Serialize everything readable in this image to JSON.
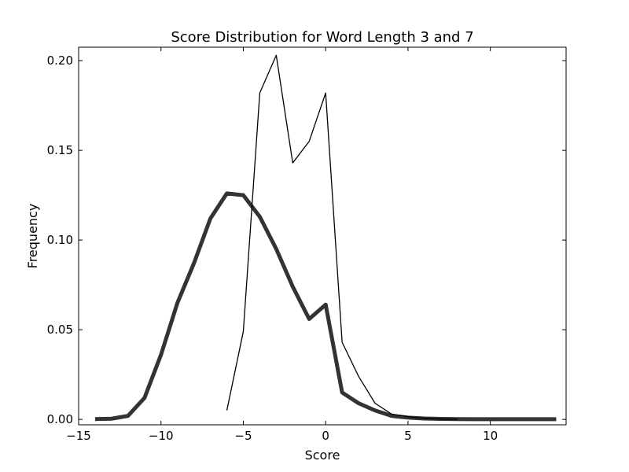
{
  "chart_data": {
    "type": "line",
    "title": "Score Distribution for Word Length 3 and 7",
    "xlabel": "Score",
    "ylabel": "Frequency",
    "xlim": [
      -15,
      14.6
    ],
    "ylim": [
      -0.003,
      0.2075
    ],
    "x_ticks": [
      -15,
      -10,
      -5,
      0,
      5,
      10
    ],
    "x_tick_labels": [
      "−15",
      "−10",
      "−5",
      "0",
      "5",
      "10"
    ],
    "y_ticks": [
      0.0,
      0.05,
      0.1,
      0.15,
      0.2
    ],
    "y_tick_labels": [
      "0.00",
      "0.05",
      "0.10",
      "0.15",
      "0.20"
    ],
    "grid": false,
    "legend": "none",
    "series": [
      {
        "color": "#000000",
        "line_width": "thin",
        "x": [
          -6,
          -5,
          -4,
          -3,
          -2,
          -1,
          0,
          1,
          2,
          3,
          4,
          5,
          6,
          7,
          8
        ],
        "y": [
          0.005,
          0.049,
          0.182,
          0.203,
          0.143,
          0.155,
          0.182,
          0.043,
          0.024,
          0.009,
          0.003,
          0.0015,
          0.0006,
          0.0002,
          0.0001
        ]
      },
      {
        "color": "#333333",
        "line_width": "thick",
        "x": [
          -14,
          -13,
          -12,
          -11,
          -10,
          -9,
          -8,
          -7,
          -6,
          -5,
          -4,
          -3,
          -2,
          -1,
          0,
          1,
          2,
          3,
          4,
          5,
          6,
          7,
          8,
          9,
          10,
          11,
          12,
          13,
          14
        ],
        "y": [
          0.0002,
          0.0004,
          0.002,
          0.012,
          0.036,
          0.065,
          0.087,
          0.112,
          0.126,
          0.125,
          0.113,
          0.095,
          0.074,
          0.056,
          0.064,
          0.015,
          0.009,
          0.005,
          0.002,
          0.001,
          0.0005,
          0.0003,
          0.0002,
          0.0001,
          0.0001,
          0.0001,
          0.0001,
          0.0001,
          0.0001
        ]
      }
    ]
  }
}
